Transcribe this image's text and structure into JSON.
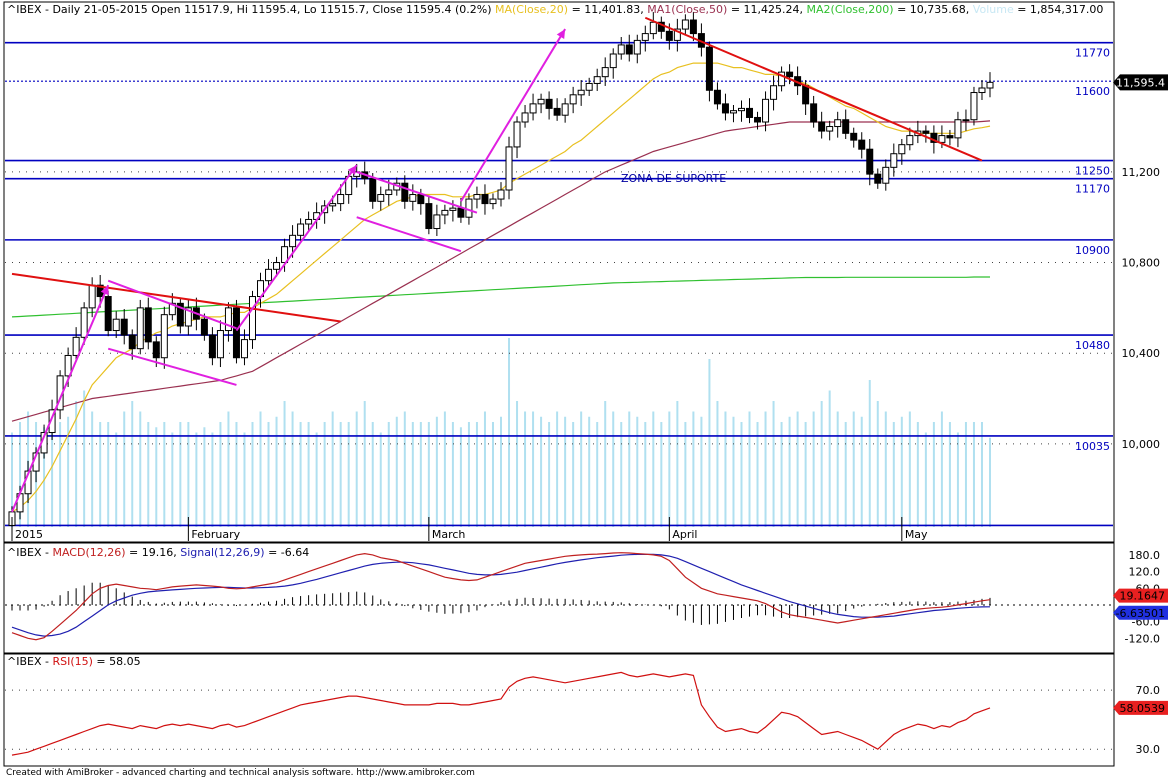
{
  "header": {
    "ticker": "^IBEX",
    "info": "- Daily 21-05-2015 Open 11517.9, Hi 11595.4, Lo 11515.7, Close 11595.4 (0.2%)",
    "ma_label": "MA(Close,20)",
    "ma_value": "= 11,401.83,",
    "ma1_label": "MA1(Close,50)",
    "ma1_value": "= 11,425.24,",
    "ma2_label": "MA2(Close,200)",
    "ma2_value": "= 10,735.68,",
    "volume_label": "Volume",
    "volume_value": "= 1,854,317.00"
  },
  "macd_header": {
    "ticker": "^IBEX",
    "macd_label": "MACD(12,26)",
    "macd_value": "= 19.16,",
    "signal_label": "Signal(12,26,9)",
    "signal_value": "= -6.64"
  },
  "rsi_header": {
    "ticker": "^IBEX",
    "rsi_label": "RSI(15)",
    "rsi_value": "= 58.05"
  },
  "footer": "Created with AmiBroker - advanced charting and technical analysis software. http://www.amibroker.com",
  "colors": {
    "ma20": "#e8c020",
    "ma50": "#9a3050",
    "ma200": "#30c030",
    "volume": "#b0e0f0",
    "levels": "#0000c0",
    "trend": "#e01010",
    "pattern": "#e020e0",
    "macd": "#c02020",
    "signal": "#2020b0",
    "rsi": "#d01010"
  },
  "chart_data": [
    {
      "type": "candlestick",
      "title": "^IBEX Daily",
      "y_ticks": [
        10000,
        10400,
        10800,
        11200
      ],
      "y_tick_labels": [
        "10,000",
        "10,400",
        "10,800",
        "11,200"
      ],
      "ylim": [
        9620,
        11870
      ],
      "month_labels": [
        {
          "label": "2015",
          "index": 0
        },
        {
          "label": "February",
          "index": 22
        },
        {
          "label": "March",
          "index": 52
        },
        {
          "label": "April",
          "index": 82
        },
        {
          "label": "May",
          "index": 111
        }
      ],
      "last_price_label": "11,595.4",
      "levels": [
        {
          "value": 11770,
          "label": "11770"
        },
        {
          "value": 11600,
          "label": "11600",
          "style": "dotted"
        },
        {
          "value": 11250,
          "label": "11250"
        },
        {
          "value": 11170,
          "label": "11170"
        },
        {
          "value": 10900,
          "label": "10900"
        },
        {
          "value": 10480,
          "label": "10480"
        },
        {
          "value": 10035,
          "label": "10035"
        },
        {
          "value": 9640,
          "label": ""
        }
      ],
      "annotation": "ZONA DE SUPORTE",
      "close": [
        9700,
        9780,
        9880,
        9960,
        10050,
        10150,
        10300,
        10390,
        10470,
        10600,
        10700,
        10650,
        10500,
        10550,
        10480,
        10420,
        10600,
        10450,
        10380,
        10570,
        10620,
        10520,
        10600,
        10550,
        10480,
        10380,
        10500,
        10600,
        10380,
        10460,
        10650,
        10720,
        10770,
        10800,
        10870,
        10920,
        10970,
        10990,
        11020,
        11050,
        11060,
        11100,
        11180,
        11200,
        11170,
        11070,
        11100,
        11120,
        11150,
        11070,
        11100,
        11060,
        10950,
        11010,
        11030,
        11040,
        11000,
        11080,
        11100,
        11060,
        11080,
        11120,
        11310,
        11420,
        11460,
        11500,
        11520,
        11480,
        11450,
        11500,
        11540,
        11560,
        11590,
        11620,
        11660,
        11720,
        11760,
        11720,
        11780,
        11810,
        11860,
        11820,
        11780,
        11830,
        11870,
        11810,
        11750,
        11560,
        11500,
        11460,
        11470,
        11480,
        11440,
        11420,
        11520,
        11580,
        11640,
        11620,
        11580,
        11500,
        11420,
        11380,
        11400,
        11430,
        11370,
        11340,
        11300,
        11190,
        11150,
        11220,
        11280,
        11320,
        11360,
        11380,
        11370,
        11330,
        11360,
        11350,
        11430,
        11430,
        11550,
        11570,
        11595
      ],
      "ma20": [
        9700,
        9720,
        9750,
        9790,
        9840,
        9900,
        9970,
        10040,
        10110,
        10190,
        10260,
        10300,
        10340,
        10380,
        10400,
        10420,
        10450,
        10470,
        10490,
        10500,
        10520,
        10530,
        10540,
        10550,
        10560,
        10560,
        10560,
        10570,
        10580,
        10580,
        10600,
        10620,
        10640,
        10660,
        10690,
        10720,
        10750,
        10780,
        10810,
        10840,
        10870,
        10900,
        10930,
        10960,
        10990,
        11010,
        11030,
        11050,
        11070,
        11080,
        11090,
        11100,
        11100,
        11100,
        11100,
        11090,
        11090,
        11090,
        11100,
        11100,
        11110,
        11120,
        11150,
        11170,
        11190,
        11210,
        11230,
        11250,
        11270,
        11290,
        11320,
        11340,
        11370,
        11400,
        11430,
        11460,
        11490,
        11520,
        11550,
        11580,
        11610,
        11630,
        11640,
        11660,
        11670,
        11680,
        11680,
        11680,
        11680,
        11670,
        11660,
        11660,
        11650,
        11640,
        11630,
        11630,
        11620,
        11610,
        11600,
        11590,
        11570,
        11550,
        11530,
        11510,
        11490,
        11480,
        11460,
        11440,
        11420,
        11400,
        11390,
        11380,
        11380,
        11370,
        11370,
        11370,
        11370,
        11370,
        11370,
        11380,
        11390,
        11395,
        11402
      ],
      "ma50": [
        10100,
        10110,
        10120,
        10130,
        10140,
        10150,
        10160,
        10170,
        10180,
        10190,
        10200,
        10205,
        10210,
        10215,
        10220,
        10225,
        10230,
        10235,
        10240,
        10245,
        10250,
        10255,
        10260,
        10265,
        10270,
        10275,
        10280,
        10290,
        10300,
        10310,
        10320,
        10340,
        10360,
        10380,
        10400,
        10420,
        10440,
        10460,
        10480,
        10500,
        10520,
        10540,
        10560,
        10580,
        10600,
        10620,
        10640,
        10660,
        10680,
        10700,
        10720,
        10740,
        10760,
        10780,
        10800,
        10820,
        10840,
        10860,
        10880,
        10900,
        10920,
        10940,
        10960,
        10980,
        11000,
        11020,
        11040,
        11060,
        11080,
        11100,
        11120,
        11140,
        11160,
        11180,
        11200,
        11215,
        11230,
        11245,
        11260,
        11275,
        11290,
        11300,
        11310,
        11320,
        11330,
        11340,
        11350,
        11360,
        11370,
        11380,
        11385,
        11390,
        11395,
        11400,
        11405,
        11410,
        11415,
        11420,
        11420,
        11420,
        11420,
        11420,
        11420,
        11420,
        11420,
        11420,
        11420,
        11420,
        11420,
        11420,
        11420,
        11420,
        11420,
        11420,
        11420,
        11420,
        11420,
        11420,
        11420,
        11420,
        11420,
        11422,
        11425
      ],
      "ma200": [
        10560,
        10562,
        10564,
        10566,
        10568,
        10570,
        10572,
        10574,
        10576,
        10578,
        10580,
        10582,
        10584,
        10586,
        10588,
        10590,
        10592,
        10594,
        10596,
        10598,
        10600,
        10602,
        10604,
        10606,
        10608,
        10610,
        10612,
        10614,
        10616,
        10618,
        10620,
        10622,
        10624,
        10626,
        10628,
        10630,
        10632,
        10634,
        10636,
        10638,
        10640,
        10642,
        10644,
        10646,
        10648,
        10650,
        10652,
        10654,
        10656,
        10658,
        10660,
        10662,
        10664,
        10666,
        10668,
        10670,
        10672,
        10674,
        10676,
        10678,
        10680,
        10682,
        10684,
        10686,
        10688,
        10690,
        10692,
        10694,
        10696,
        10698,
        10700,
        10702,
        10704,
        10706,
        10708,
        10710,
        10711,
        10712,
        10713,
        10714,
        10715,
        10716,
        10717,
        10718,
        10719,
        10720,
        10721,
        10722,
        10723,
        10724,
        10725,
        10726,
        10727,
        10728,
        10729,
        10730,
        10731,
        10732,
        10733,
        10734,
        10734,
        10734,
        10734,
        10734,
        10735,
        10735,
        10735,
        10735,
        10735,
        10735,
        10735,
        10735,
        10735,
        10735,
        10735,
        10735,
        10735,
        10735,
        10735,
        10735,
        10736,
        10736,
        10736
      ],
      "volume": [
        0.9,
        1.0,
        1.1,
        1.0,
        0.95,
        0.9,
        1.0,
        1.05,
        1.2,
        1.3,
        1.1,
        1.0,
        1.0,
        0.9,
        1.1,
        1.2,
        1.1,
        1.0,
        0.95,
        1.0,
        0.9,
        1.0,
        1.0,
        0.9,
        0.95,
        0.9,
        1.0,
        1.1,
        1.0,
        0.9,
        1.0,
        1.1,
        1.0,
        1.05,
        1.2,
        1.1,
        1.0,
        1.0,
        0.9,
        1.0,
        1.1,
        1.0,
        1.0,
        1.1,
        1.2,
        1.0,
        0.9,
        1.0,
        1.05,
        1.1,
        1.0,
        1.0,
        1.0,
        1.05,
        1.1,
        1.0,
        0.95,
        1.0,
        1.0,
        1.1,
        1.0,
        1.05,
        1.8,
        1.2,
        1.1,
        1.1,
        1.05,
        1.0,
        1.1,
        1.05,
        1.0,
        1.1,
        1.05,
        1.0,
        1.2,
        1.1,
        1.0,
        1.1,
        1.05,
        1.0,
        1.1,
        1.0,
        1.1,
        1.2,
        1.0,
        1.1,
        1.05,
        1.6,
        1.2,
        1.1,
        1.05,
        1.0,
        1.1,
        1.0,
        1.1,
        1.2,
        1.0,
        1.05,
        1.1,
        1.0,
        1.1,
        1.2,
        1.3,
        1.1,
        1.0,
        1.1,
        1.05,
        1.4,
        1.2,
        1.1,
        1.0,
        1.05,
        1.1,
        1.0,
        0.9,
        1.0,
        1.1,
        1.0,
        0.9,
        1.0,
        1.0,
        1.0,
        0.85
      ],
      "trend_lines": [
        {
          "name": "red-trend-upper",
          "points": [
            [
              0,
              10750
            ],
            [
              41,
              10540
            ]
          ]
        },
        {
          "name": "red-trend-lower",
          "points": [
            [
              79,
              11880
            ],
            [
              121,
              11250
            ]
          ]
        }
      ],
      "pattern_lines": [
        {
          "name": "magenta-arrow-1",
          "points": [
            [
              0,
              9700
            ],
            [
              12,
              10700
            ]
          ]
        },
        {
          "name": "magenta-flag-1-top",
          "points": [
            [
              12,
              10720
            ],
            [
              28,
              10510
            ]
          ]
        },
        {
          "name": "magenta-flag-1-bottom",
          "points": [
            [
              12,
              10420
            ],
            [
              28,
              10260
            ]
          ]
        },
        {
          "name": "magenta-arrow-2",
          "points": [
            [
              28,
              10500
            ],
            [
              43,
              11230
            ]
          ]
        },
        {
          "name": "magenta-flag-2-top",
          "points": [
            [
              43,
              11200
            ],
            [
              58,
              11020
            ]
          ]
        },
        {
          "name": "magenta-flag-2-bottom",
          "points": [
            [
              43,
              11000
            ],
            [
              56,
              10850
            ]
          ]
        },
        {
          "name": "magenta-arrow-3",
          "points": [
            [
              56,
              11070
            ],
            [
              69,
              11830
            ]
          ]
        }
      ]
    },
    {
      "type": "line",
      "title": "MACD(12,26)",
      "y_ticks": [
        180,
        120,
        60,
        -60,
        -120
      ],
      "y_tick_labels": [
        "180.0",
        "120.0",
        "60.0",
        "-60.0",
        "-120.0"
      ],
      "ylim": [
        -155,
        205
      ],
      "last_macd_label": "19.1647",
      "last_signal_label": "-6.63501",
      "macd": [
        -100,
        -110,
        -120,
        -125,
        -118,
        -95,
        -70,
        -45,
        -20,
        10,
        40,
        60,
        70,
        75,
        70,
        65,
        60,
        58,
        55,
        60,
        65,
        68,
        70,
        72,
        70,
        68,
        65,
        60,
        58,
        60,
        65,
        70,
        75,
        80,
        90,
        100,
        110,
        120,
        130,
        140,
        150,
        160,
        170,
        180,
        185,
        180,
        170,
        165,
        160,
        150,
        140,
        130,
        120,
        110,
        100,
        95,
        90,
        88,
        90,
        100,
        110,
        120,
        130,
        140,
        150,
        155,
        160,
        165,
        170,
        175,
        178,
        180,
        182,
        183,
        185,
        187,
        188,
        187,
        185,
        183,
        180,
        175,
        160,
        130,
        100,
        80,
        60,
        50,
        40,
        35,
        30,
        25,
        20,
        15,
        5,
        -10,
        -25,
        -35,
        -40,
        -45,
        -50,
        -55,
        -60,
        -65,
        -60,
        -55,
        -50,
        -45,
        -40,
        -35,
        -30,
        -25,
        -20,
        -15,
        -12,
        -10,
        -8,
        -5,
        0,
        5,
        10,
        15,
        19
      ],
      "signal": [
        -80,
        -90,
        -100,
        -108,
        -112,
        -110,
        -105,
        -95,
        -80,
        -60,
        -40,
        -20,
        0,
        15,
        25,
        35,
        42,
        47,
        50,
        52,
        54,
        56,
        58,
        60,
        61,
        62,
        63,
        63,
        62,
        61,
        61,
        62,
        63,
        65,
        68,
        72,
        78,
        85,
        92,
        100,
        108,
        116,
        124,
        132,
        140,
        146,
        150,
        152,
        154,
        154,
        152,
        148,
        144,
        138,
        132,
        126,
        120,
        114,
        110,
        108,
        108,
        110,
        114,
        118,
        124,
        130,
        136,
        142,
        148,
        153,
        158,
        162,
        166,
        170,
        173,
        176,
        179,
        181,
        182,
        182,
        182,
        180,
        176,
        168,
        156,
        144,
        132,
        120,
        108,
        96,
        84,
        72,
        62,
        52,
        42,
        32,
        22,
        12,
        4,
        -4,
        -12,
        -20,
        -28,
        -34,
        -38,
        -42,
        -44,
        -44,
        -44,
        -42,
        -40,
        -36,
        -32,
        -28,
        -24,
        -20,
        -18,
        -15,
        -12,
        -10,
        -8,
        -7,
        -6.64
      ]
    },
    {
      "type": "line",
      "title": "RSI(15)",
      "y_ticks": [
        70,
        30
      ],
      "y_tick_labels": [
        "70.0",
        "30.0"
      ],
      "ylim": [
        20,
        85
      ],
      "last_rsi_label": "58.0539",
      "rsi": [
        26,
        27,
        28,
        30,
        32,
        34,
        36,
        38,
        40,
        42,
        44,
        46,
        47,
        46,
        45,
        44,
        46,
        45,
        44,
        46,
        47,
        46,
        47,
        46,
        45,
        44,
        46,
        47,
        45,
        46,
        48,
        50,
        52,
        54,
        56,
        58,
        60,
        61,
        62,
        63,
        64,
        65,
        66,
        66,
        65,
        64,
        63,
        62,
        61,
        60,
        60,
        60,
        60,
        61,
        61,
        61,
        60,
        60,
        61,
        62,
        63,
        64,
        72,
        76,
        78,
        79,
        78,
        77,
        76,
        75,
        76,
        77,
        78,
        79,
        80,
        81,
        82,
        80,
        79,
        80,
        81,
        80,
        79,
        80,
        81,
        80,
        60,
        52,
        45,
        42,
        43,
        44,
        42,
        41,
        45,
        50,
        55,
        54,
        52,
        48,
        44,
        40,
        41,
        42,
        40,
        38,
        36,
        33,
        30,
        35,
        40,
        43,
        45,
        47,
        46,
        44,
        46,
        45,
        48,
        50,
        54,
        56,
        58
      ]
    }
  ]
}
